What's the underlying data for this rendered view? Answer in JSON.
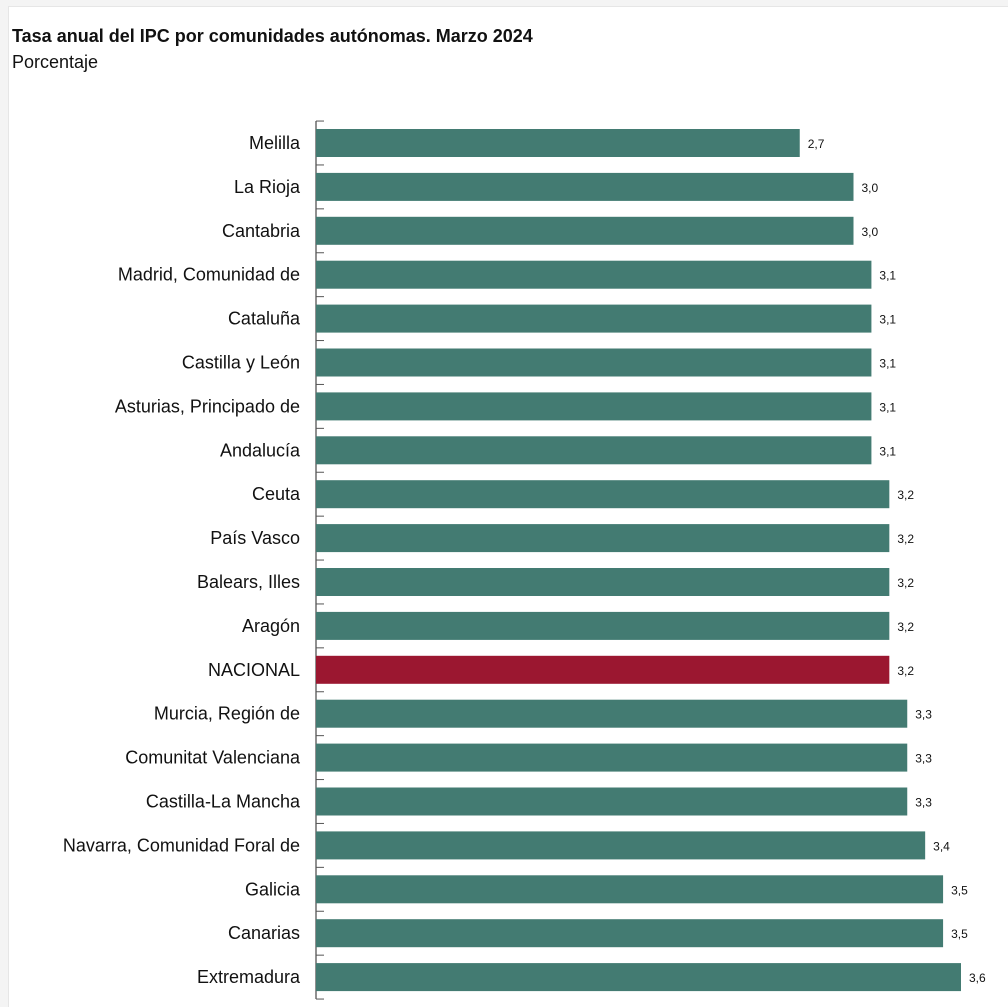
{
  "chart_data": {
    "type": "bar",
    "orientation": "horizontal",
    "title": "Tasa anual del IPC por comunidades autónomas. Marzo 2024",
    "subtitle": "Porcentaje",
    "categories": [
      "Melilla",
      "La Rioja",
      "Cantabria",
      "Madrid, Comunidad de",
      "Cataluña",
      "Castilla y León",
      "Asturias, Principado de",
      "Andalucía",
      "Ceuta",
      "País Vasco",
      "Balears, Illes",
      "Aragón",
      "NACIONAL",
      "Murcia, Región de",
      "Comunitat Valenciana",
      "Castilla-La Mancha",
      "Navarra, Comunidad Foral de",
      "Galicia",
      "Canarias",
      "Extremadura"
    ],
    "values": [
      2.7,
      3.0,
      3.0,
      3.1,
      3.1,
      3.1,
      3.1,
      3.1,
      3.2,
      3.2,
      3.2,
      3.2,
      3.2,
      3.3,
      3.3,
      3.3,
      3.4,
      3.5,
      3.5,
      3.6
    ],
    "value_labels": [
      "2,7",
      "3,0",
      "3,0",
      "3,1",
      "3,1",
      "3,1",
      "3,1",
      "3,1",
      "3,2",
      "3,2",
      "3,2",
      "3,2",
      "3,2",
      "3,3",
      "3,3",
      "3,3",
      "3,4",
      "3,5",
      "3,5",
      "3,6"
    ],
    "highlight_category": "NACIONAL",
    "xlim": [
      0,
      3.6
    ],
    "grid": false,
    "legend": "none",
    "colors": {
      "bar": "#437b72",
      "highlight": "#9b1730",
      "axis": "#555555"
    }
  }
}
